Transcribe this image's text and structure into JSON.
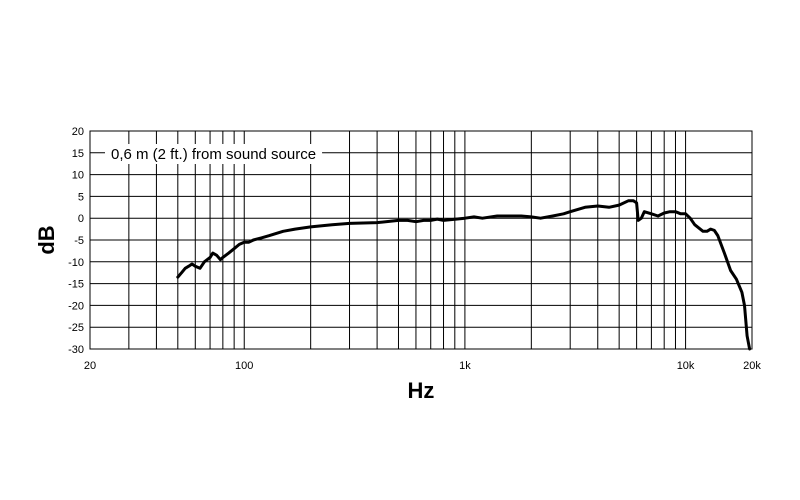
{
  "chart_data": {
    "type": "line",
    "title": "",
    "xlabel": "Hz",
    "ylabel": "dB",
    "x_scale": "log",
    "xlim": [
      20,
      20000
    ],
    "ylim": [
      -30,
      20
    ],
    "grid": true,
    "x_ticks": [
      {
        "value": 20,
        "label": "20"
      },
      {
        "value": 100,
        "label": "100"
      },
      {
        "value": 1000,
        "label": "1k"
      },
      {
        "value": 10000,
        "label": "10k"
      },
      {
        "value": 20000,
        "label": "20k"
      }
    ],
    "y_ticks": [
      20,
      15,
      10,
      5,
      0,
      -5,
      -10,
      -15,
      -20,
      -25,
      -30
    ],
    "annotation": "0,6 m (2 ft.) from sound source",
    "series": [
      {
        "color": "#000000",
        "x": [
          50,
          52,
          54,
          56,
          58,
          60,
          63,
          66,
          68,
          70,
          72,
          75,
          78,
          80,
          85,
          90,
          95,
          100,
          105,
          110,
          120,
          130,
          150,
          170,
          200,
          250,
          300,
          400,
          500,
          550,
          600,
          650,
          700,
          750,
          800,
          1000,
          1100,
          1200,
          1400,
          1800,
          2000,
          2200,
          2500,
          2800,
          3000,
          3500,
          4000,
          4500,
          5000,
          5500,
          5800,
          6000,
          6100,
          6300,
          6500,
          7000,
          7500,
          8000,
          8500,
          9000,
          9500,
          10000,
          10500,
          11000,
          12000,
          12500,
          13000,
          13500,
          14000,
          15000,
          16000,
          17000,
          18000,
          18500,
          19000,
          19500
        ],
        "y": [
          -13.5,
          -12.5,
          -11.5,
          -11,
          -10.5,
          -11,
          -11.5,
          -10,
          -9.5,
          -9,
          -8,
          -8.5,
          -9.5,
          -9,
          -8,
          -7,
          -6,
          -5.5,
          -5.5,
          -5,
          -4.5,
          -4,
          -3,
          -2.5,
          -2,
          -1.5,
          -1.2,
          -1,
          -0.5,
          -0.5,
          -0.8,
          -0.5,
          -0.5,
          -0.2,
          -0.5,
          0,
          0.3,
          0,
          0.5,
          0.5,
          0.3,
          0,
          0.5,
          1,
          1.5,
          2.5,
          2.8,
          2.5,
          3,
          4,
          4,
          3.5,
          -0.5,
          0,
          1.5,
          1,
          0.5,
          1.2,
          1.5,
          1.5,
          1,
          1,
          0,
          -1.5,
          -3,
          -3,
          -2.5,
          -2.8,
          -4,
          -8,
          -12,
          -14,
          -17,
          -20,
          -27,
          -30
        ]
      }
    ]
  }
}
